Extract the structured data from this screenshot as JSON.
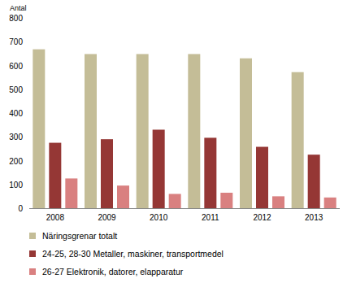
{
  "chart_data": {
    "type": "bar",
    "y_label": "Antal",
    "categories": [
      "2008",
      "2009",
      "2010",
      "2011",
      "2012",
      "2013"
    ],
    "series": [
      {
        "name": "Näringsgrenar totalt",
        "color": "#c4bd97",
        "values": [
          668,
          648,
          648,
          648,
          630,
          572
        ]
      },
      {
        "name": "24-25, 28-30 Metaller, maskiner, transportmedel",
        "color": "#953735",
        "values": [
          275,
          290,
          330,
          296,
          258,
          225
        ]
      },
      {
        "name": "26-27 Elektronik, datorer, elapparatur",
        "color": "#d98080",
        "values": [
          125,
          95,
          60,
          65,
          50,
          45
        ]
      }
    ],
    "ylim": [
      0,
      800
    ],
    "yticks": [
      0,
      100,
      200,
      300,
      400,
      500,
      600,
      700,
      800
    ],
    "grid": false,
    "legend": "bottom"
  }
}
